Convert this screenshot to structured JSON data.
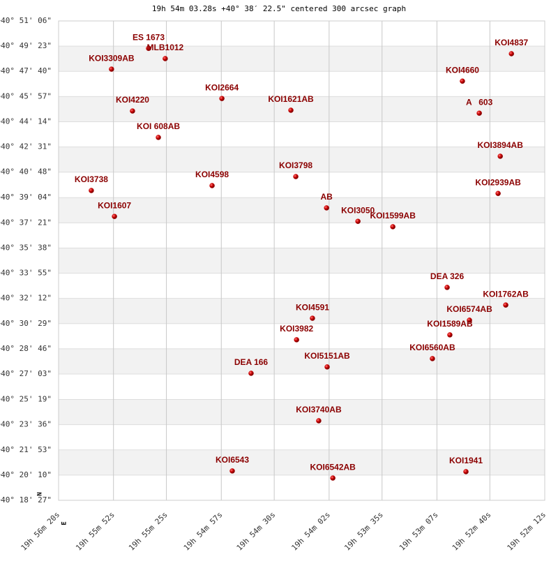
{
  "chart_data": {
    "type": "scatter",
    "title": "19h 54m 03.28s +40° 38′ 22.5\" centered 300 arcsec graph",
    "compass": [
      "N",
      "E"
    ],
    "color": "#cc0000",
    "grid": true,
    "xlim": [
      71780,
      71532
    ],
    "xticks": [
      {
        "value": 71780,
        "label": "19h 56m 20s"
      },
      {
        "value": 71752,
        "label": "19h 55m 52s"
      },
      {
        "value": 71725,
        "label": "19h 55m 25s"
      },
      {
        "value": 71697,
        "label": "19h 54m 57s"
      },
      {
        "value": 71670,
        "label": "19h 54m 30s"
      },
      {
        "value": 71642,
        "label": "19h 54m 02s"
      },
      {
        "value": 71615,
        "label": "19h 53m 35s"
      },
      {
        "value": 71587,
        "label": "19h 53m 07s"
      },
      {
        "value": 71560,
        "label": "19h 52m 40s"
      },
      {
        "value": 71532,
        "label": "19h 52m 12s"
      }
    ],
    "ylim": [
      145107,
      147066
    ],
    "yticks": [
      {
        "value": 145107,
        "label": "+40° 18' 27\""
      },
      {
        "value": 145210,
        "label": "+40° 20' 10\""
      },
      {
        "value": 145313,
        "label": "+40° 21' 53\""
      },
      {
        "value": 145416,
        "label": "+40° 23' 36\""
      },
      {
        "value": 145519,
        "label": "+40° 25' 19\""
      },
      {
        "value": 145623,
        "label": "+40° 27' 03\""
      },
      {
        "value": 145726,
        "label": "+40° 28' 46\""
      },
      {
        "value": 145829,
        "label": "+40° 30' 29\""
      },
      {
        "value": 145932,
        "label": "+40° 32' 12\""
      },
      {
        "value": 146035,
        "label": "+40° 33' 55\""
      },
      {
        "value": 146138,
        "label": "+40° 35' 38\""
      },
      {
        "value": 146241,
        "label": "+40° 37' 21\""
      },
      {
        "value": 146344,
        "label": "+40° 39' 04\""
      },
      {
        "value": 146448,
        "label": "+40° 40' 48\""
      },
      {
        "value": 146551,
        "label": "+40° 42' 31\""
      },
      {
        "value": 146654,
        "label": "+40° 44' 14\""
      },
      {
        "value": 146757,
        "label": "+40° 45' 57\""
      },
      {
        "value": 146860,
        "label": "+40° 47' 40\""
      },
      {
        "value": 146963,
        "label": "+40° 49' 23\""
      },
      {
        "value": 147066,
        "label": "+40° 51' 06\""
      }
    ],
    "point_labels": [
      "ES 1673",
      "MLB1012",
      "KOI3309AB",
      "KOI4837",
      "KOI4660",
      "KOI2664",
      "KOI1621AB",
      "KOI4220",
      "A   603",
      "KOI 608AB",
      "KOI3894AB",
      "KOI3798",
      "KOI4598",
      "KOI3738",
      "KOI2939AB",
      "AB",
      "KOI1607",
      "KOI3050",
      "KOI1599AB",
      "DEA 326",
      "KOI1762AB",
      "KOI4591",
      "KOI6574AB",
      "KOI1589AB",
      "KOI3982",
      "KOI6560AB",
      "KOI5151AB",
      "DEA 166",
      "KOI3740AB",
      "KOI6543",
      "KOI1941",
      "KOI6542AB"
    ],
    "x": [
      71734.1,
      71725.6,
      71753.0,
      71549.0,
      71574.0,
      71696.7,
      71661.5,
      71742.3,
      71565.4,
      71729.1,
      71554.7,
      71659.0,
      71701.7,
      71763.3,
      71555.8,
      71643.3,
      71751.5,
      71627.3,
      71609.5,
      71581.8,
      71551.9,
      71650.5,
      71570.4,
      71580.4,
      71658.6,
      71589.3,
      71643.0,
      71681.8,
      71647.3,
      71691.4,
      71572.2,
      71640.1
    ],
    "values": [
      146954,
      146912,
      146869,
      146932,
      146820,
      146749,
      146701,
      146698,
      146689,
      146590,
      146513,
      146430,
      146393,
      146373,
      146361,
      146302,
      146267,
      146247,
      146225,
      145977,
      145905,
      145851,
      145843,
      145783,
      145763,
      145686,
      145652,
      145626,
      145432,
      145227,
      145224,
      145198
    ]
  }
}
